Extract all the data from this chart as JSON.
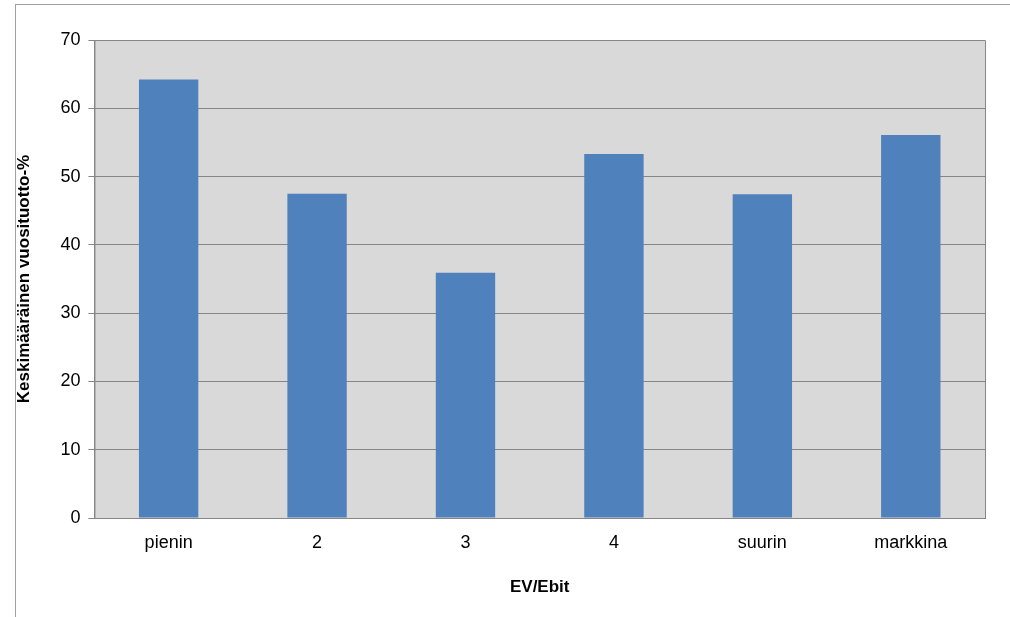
{
  "chart_data": {
    "type": "bar",
    "xlabel": "EV/Ebit",
    "ylabel": "Keskimääräinen vuosituotto-%",
    "categories": [
      "pienin",
      "2",
      "3",
      "4",
      "suurin",
      "markkina"
    ],
    "values": [
      64.2,
      47.5,
      35.9,
      53.3,
      47.4,
      56.1
    ],
    "color": "#4f81bd",
    "ylim": [
      0,
      70
    ],
    "yticks": [
      0,
      10,
      20,
      30,
      40,
      50,
      60,
      70
    ],
    "grid": "y",
    "legend": false
  }
}
